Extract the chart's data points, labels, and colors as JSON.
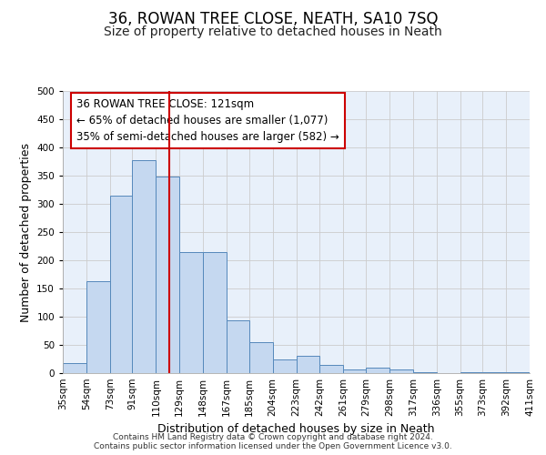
{
  "title": "36, ROWAN TREE CLOSE, NEATH, SA10 7SQ",
  "subtitle": "Size of property relative to detached houses in Neath",
  "xlabel": "Distribution of detached houses by size in Neath",
  "ylabel": "Number of detached properties",
  "bar_edges": [
    35,
    54,
    73,
    91,
    110,
    129,
    148,
    167,
    185,
    204,
    223,
    242,
    261,
    279,
    298,
    317,
    336,
    355,
    373,
    392,
    411
  ],
  "bar_heights": [
    18,
    163,
    315,
    378,
    348,
    215,
    215,
    93,
    55,
    25,
    30,
    15,
    7,
    10,
    7,
    2,
    0,
    2,
    2,
    1
  ],
  "bar_color": "#c5d8f0",
  "bar_edge_color": "#5588bb",
  "marker_value": 121,
  "marker_color": "#cc0000",
  "annotation_line1": "36 ROWAN TREE CLOSE: 121sqm",
  "annotation_line2": "← 65% of detached houses are smaller (1,077)",
  "annotation_line3": "35% of semi-detached houses are larger (582) →",
  "annotation_box_color": "#ffffff",
  "annotation_box_edge": "#cc0000",
  "ylim": [
    0,
    500
  ],
  "xlim": [
    35,
    411
  ],
  "grid_color": "#cccccc",
  "bg_color": "#e8f0fa",
  "footer_line1": "Contains HM Land Registry data © Crown copyright and database right 2024.",
  "footer_line2": "Contains public sector information licensed under the Open Government Licence v3.0.",
  "title_fontsize": 12,
  "subtitle_fontsize": 10,
  "label_fontsize": 9,
  "tick_fontsize": 7.5,
  "annotation_fontsize": 8.5,
  "footer_fontsize": 6.5
}
